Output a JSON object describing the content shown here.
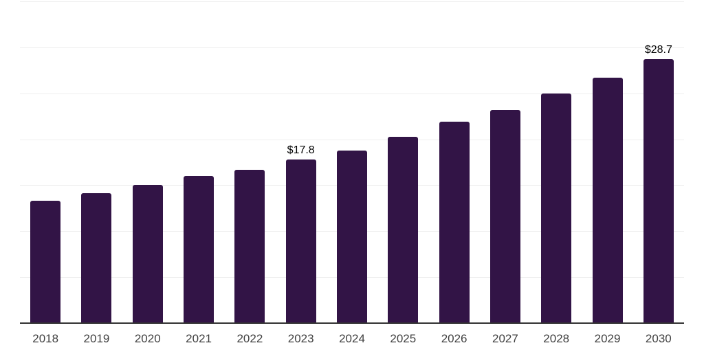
{
  "chart_data": {
    "type": "bar",
    "title": "",
    "xlabel": "",
    "ylabel": "",
    "categories": [
      "2018",
      "2019",
      "2020",
      "2021",
      "2022",
      "2023",
      "2024",
      "2025",
      "2026",
      "2027",
      "2028",
      "2029",
      "2030"
    ],
    "values": [
      13.3,
      14.1,
      15.0,
      16.0,
      16.7,
      17.8,
      18.8,
      20.3,
      21.9,
      23.2,
      25.0,
      26.7,
      28.7
    ],
    "value_prefix": "$",
    "annotations": [
      {
        "index": 5,
        "text": "$17.8"
      },
      {
        "index": 12,
        "text": "$28.7"
      }
    ],
    "ylim": [
      0,
      35
    ],
    "gridline_step": 5,
    "y_tick_labels_shown": false,
    "grid": "horizontal",
    "legend": "none"
  },
  "colors": {
    "background": "#ffffff",
    "bar": "#321446",
    "gridline": "#eeeeee",
    "axis_line": "#333333",
    "tick_label": "#404040",
    "data_label": "#000000"
  }
}
